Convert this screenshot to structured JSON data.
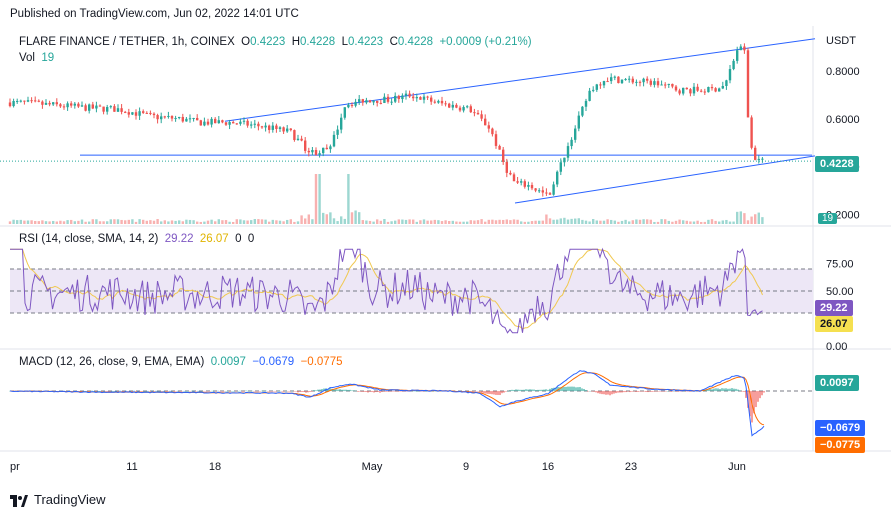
{
  "header": {
    "published": "Published on TradingView.com, Jun 02, 2022 14:01 UTC",
    "symbol": "FLARE FINANCE / TETHER, 1h, COINEX",
    "ohlc": {
      "O": "0.4223",
      "H": "0.4228",
      "L": "0.4223",
      "C": "0.4228",
      "change": "+0.0009 (+0.21%)"
    },
    "ohlc_labels": {
      "O": "O",
      "H": "H",
      "L": "L",
      "C": "C"
    },
    "vol_label": "Vol",
    "vol_value": "19"
  },
  "footer": {
    "brand": "TradingView"
  },
  "colors": {
    "up": "#26a69a",
    "down": "#ef5350",
    "trend": "#2962ff",
    "rsi": "#7e57c2",
    "rsi_sma": "#f0c850",
    "rsi_band": "#ede7f6",
    "macd": "#2962ff",
    "macd_signal": "#ff6d00",
    "price_badge": "#26a69a"
  },
  "chart_data": [
    {
      "type": "candlestick",
      "quote_unit": "USDT",
      "y_ticks": [
        "0.8000",
        "0.6000",
        "0.4000",
        "0.2000"
      ],
      "yrange": [
        0.16,
        0.98
      ],
      "current_price": "0.4228",
      "volume_badge": "19",
      "x_tick_labels": [
        "pr",
        "11",
        "18",
        "May",
        "9",
        "16",
        "23",
        "Jun"
      ],
      "price_path": [
        {
          "t": 0,
          "v": 0.67
        },
        {
          "t": 30,
          "v": 0.665
        },
        {
          "t": 60,
          "v": 0.655
        },
        {
          "t": 90,
          "v": 0.645
        },
        {
          "t": 120,
          "v": 0.64
        },
        {
          "t": 150,
          "v": 0.61
        },
        {
          "t": 180,
          "v": 0.6
        },
        {
          "t": 200,
          "v": 0.585
        },
        {
          "t": 230,
          "v": 0.585
        },
        {
          "t": 260,
          "v": 0.57
        },
        {
          "t": 290,
          "v": 0.545
        },
        {
          "t": 310,
          "v": 0.46
        },
        {
          "t": 330,
          "v": 0.47
        },
        {
          "t": 345,
          "v": 0.66
        },
        {
          "t": 365,
          "v": 0.68
        },
        {
          "t": 390,
          "v": 0.68
        },
        {
          "t": 410,
          "v": 0.7
        },
        {
          "t": 440,
          "v": 0.665
        },
        {
          "t": 470,
          "v": 0.64
        },
        {
          "t": 490,
          "v": 0.56
        },
        {
          "t": 505,
          "v": 0.4
        },
        {
          "t": 515,
          "v": 0.33
        },
        {
          "t": 530,
          "v": 0.32
        },
        {
          "t": 548,
          "v": 0.275
        },
        {
          "t": 560,
          "v": 0.4
        },
        {
          "t": 575,
          "v": 0.56
        },
        {
          "t": 590,
          "v": 0.72
        },
        {
          "t": 605,
          "v": 0.77
        },
        {
          "t": 630,
          "v": 0.76
        },
        {
          "t": 655,
          "v": 0.75
        },
        {
          "t": 680,
          "v": 0.72
        },
        {
          "t": 710,
          "v": 0.72
        },
        {
          "t": 725,
          "v": 0.74
        },
        {
          "t": 738,
          "v": 0.9
        },
        {
          "t": 745,
          "v": 0.88
        },
        {
          "t": 749,
          "v": 0.52
        },
        {
          "t": 754,
          "v": 0.44
        },
        {
          "t": 764,
          "v": 0.42
        }
      ],
      "trendlines": [
        {
          "t1": 225,
          "v1": 0.59,
          "t2": 815,
          "v2": 0.935
        },
        {
          "t1": 515,
          "v1": 0.248,
          "t2": 815,
          "v2": 0.445
        },
        {
          "t1": 80,
          "v1": 0.448,
          "t2": 812,
          "v2": 0.448
        }
      ]
    },
    {
      "type": "line",
      "title": "RSI (14, close, SMA, 14, 2)",
      "values": {
        "rsi": "29.22",
        "sma": "26.07",
        "extra1": "0",
        "extra2": "0"
      },
      "y_ticks": [
        "75.00",
        "50.00",
        "0.00"
      ],
      "ylim": [
        0,
        100
      ],
      "band": [
        30,
        70
      ],
      "rsi_badge": "29.22",
      "sma_badge": "26.07"
    },
    {
      "type": "line",
      "title": "MACD (12, 26, close, 9, EMA, EMA)",
      "values": {
        "hist": "0.0097",
        "macd": "−0.0679",
        "signal": "−0.0775"
      },
      "badges": {
        "hist": "0.0097",
        "macd": "−0.0679",
        "signal": "−0.0775"
      },
      "ylim": [
        -0.11,
        0.06
      ],
      "macd_path": [
        {
          "t": 0,
          "v": 0.0
        },
        {
          "t": 100,
          "v": -0.002
        },
        {
          "t": 200,
          "v": -0.003
        },
        {
          "t": 290,
          "v": -0.004
        },
        {
          "t": 310,
          "v": -0.012
        },
        {
          "t": 330,
          "v": 0.006
        },
        {
          "t": 350,
          "v": 0.014
        },
        {
          "t": 380,
          "v": 0.002
        },
        {
          "t": 450,
          "v": 0.0
        },
        {
          "t": 480,
          "v": -0.004
        },
        {
          "t": 500,
          "v": -0.03
        },
        {
          "t": 515,
          "v": -0.02
        },
        {
          "t": 548,
          "v": -0.005
        },
        {
          "t": 565,
          "v": 0.02
        },
        {
          "t": 580,
          "v": 0.04
        },
        {
          "t": 595,
          "v": 0.032
        },
        {
          "t": 610,
          "v": 0.012
        },
        {
          "t": 650,
          "v": 0.004
        },
        {
          "t": 700,
          "v": 0.0
        },
        {
          "t": 735,
          "v": 0.03
        },
        {
          "t": 745,
          "v": 0.025
        },
        {
          "t": 752,
          "v": -0.085
        },
        {
          "t": 758,
          "v": -0.078
        },
        {
          "t": 764,
          "v": -0.068
        }
      ]
    }
  ]
}
